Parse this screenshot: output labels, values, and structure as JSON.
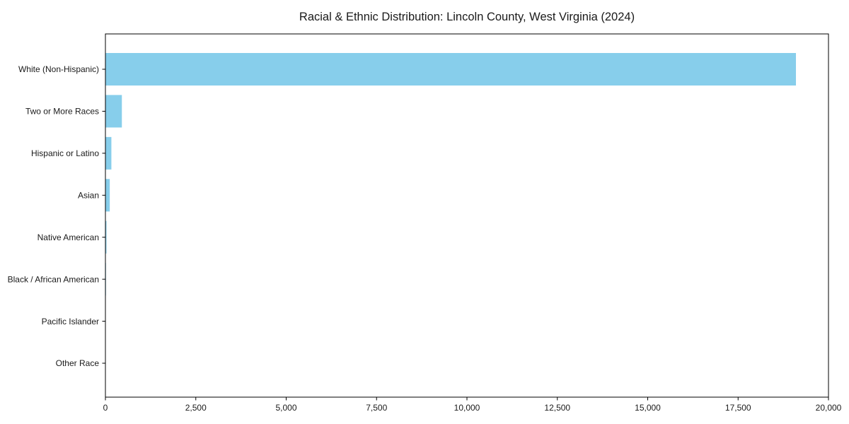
{
  "chart_data": {
    "type": "bar",
    "orientation": "horizontal",
    "title": "Racial & Ethnic Distribution: Lincoln County, West Virginia (2024)",
    "categories": [
      "White (Non-Hispanic)",
      "Two or More Races",
      "Hispanic or Latino",
      "Asian",
      "Native American",
      "Black / African American",
      "Pacific Islander",
      "Other Race"
    ],
    "values": [
      19100,
      455,
      165,
      120,
      30,
      15,
      6,
      4
    ],
    "xlabel": "",
    "ylabel": "",
    "xlim": [
      0,
      20000
    ],
    "xticks": [
      0,
      2500,
      5000,
      7500,
      10000,
      12500,
      15000,
      17500,
      20000
    ],
    "xtick_labels": [
      "0",
      "2,500",
      "5,000",
      "7,500",
      "10,000",
      "12,500",
      "15,000",
      "17,500",
      "20,000"
    ],
    "grid": false,
    "legend": null,
    "bar_color": "#87CEEB",
    "axis_color": "#000000",
    "text_color": "#1a1a1a"
  }
}
